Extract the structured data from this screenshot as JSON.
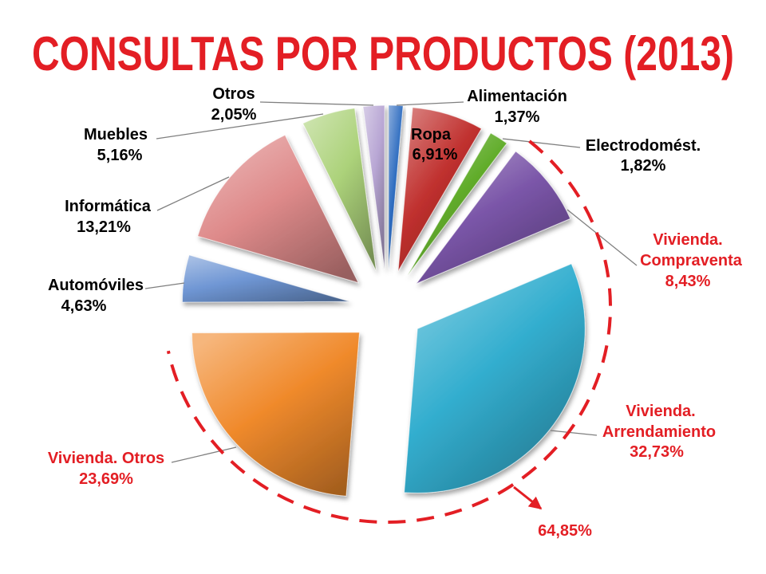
{
  "chart_data": {
    "type": "pie",
    "title": "CONSULTAS POR PRODUCTOS (2013)",
    "title_color": "#e31e24",
    "exploded": true,
    "slices": [
      {
        "label_lines": [
          "Alimentación"
        ],
        "value": 1.37,
        "value_label": "1,37%",
        "color": "#2f6dc0",
        "label_color": "#000000"
      },
      {
        "label_lines": [
          "Ropa"
        ],
        "value": 6.91,
        "value_label": "6,91%",
        "color": "#c0302e",
        "label_color": "#000000"
      },
      {
        "label_lines": [
          "Electrodomést."
        ],
        "value": 1.82,
        "value_label": "1,82%",
        "color": "#62ad2c",
        "label_color": "#000000"
      },
      {
        "label_lines": [
          "Vivienda.",
          "Compraventa"
        ],
        "value": 8.43,
        "value_label": "8,43%",
        "color": "#7a55a8",
        "label_color": "#e31e24"
      },
      {
        "label_lines": [
          "Vivienda.",
          "Arrendamiento"
        ],
        "value": 32.73,
        "value_label": "32,73%",
        "color": "#33aecf",
        "label_color": "#e31e24"
      },
      {
        "label_lines": [
          "Vivienda. Otros"
        ],
        "value": 23.69,
        "value_label": "23,69%",
        "color": "#f08a2c",
        "label_color": "#e31e24"
      },
      {
        "label_lines": [
          "Automóviles"
        ],
        "value": 4.63,
        "value_label": "4,63%",
        "color": "#6f96d4",
        "label_color": "#000000"
      },
      {
        "label_lines": [
          "Informática"
        ],
        "value": 13.21,
        "value_label": "13,21%",
        "color": "#de8a8a",
        "label_color": "#000000"
      },
      {
        "label_lines": [
          "Muebles"
        ],
        "value": 5.16,
        "value_label": "5,16%",
        "color": "#acd27a",
        "label_color": "#000000"
      },
      {
        "label_lines": [
          "Otros"
        ],
        "value": 2.05,
        "value_label": "2,05%",
        "color": "#b8a6d4",
        "label_color": "#000000"
      }
    ],
    "annotation": {
      "text": "64,85%",
      "color": "#e31e24"
    }
  }
}
